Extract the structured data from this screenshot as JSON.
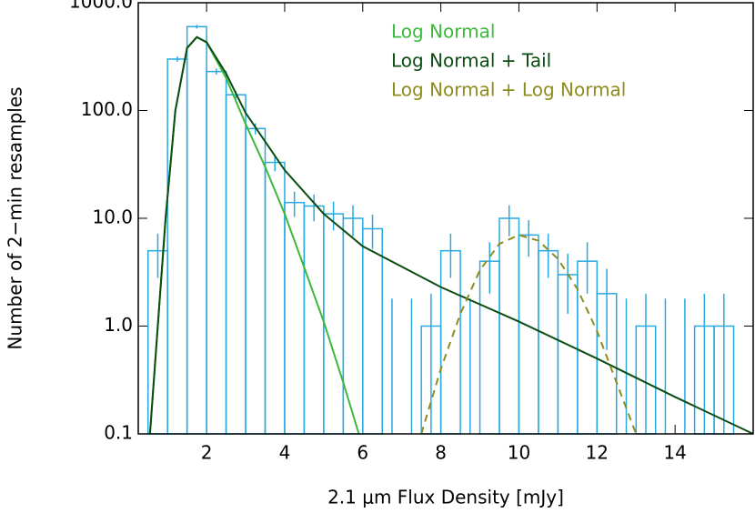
{
  "chart_data": {
    "type": "histogram",
    "x_label": "2.1 μm Flux Density [mJy]",
    "y_label": "Number of 2−min resamples",
    "bins": [
      0.5,
      1.0,
      1.5,
      2.0,
      2.5,
      3.0,
      3.5,
      4.0,
      4.5,
      5.0,
      5.5,
      6.0,
      6.5,
      7.0,
      7.5,
      8.0,
      8.5,
      9.0,
      9.5,
      10.0,
      10.5,
      11.0,
      11.5,
      12.0,
      12.5,
      13.0,
      13.5,
      14.0,
      14.5,
      15.0,
      15.5
    ],
    "values": [
      5,
      300,
      600,
      230,
      140,
      68,
      33,
      14,
      13,
      11,
      10,
      8,
      0,
      0,
      1,
      5,
      0,
      4,
      10,
      7,
      5,
      3,
      4,
      2,
      0,
      1,
      0,
      0,
      1,
      1
    ],
    "errors": [
      2.2,
      17,
      24,
      15,
      12,
      8,
      5.7,
      3.7,
      3.6,
      3.3,
      3.2,
      2.8,
      1.8,
      1.8,
      1,
      2.2,
      1.8,
      2,
      3.2,
      2.6,
      2.2,
      1.7,
      2,
      1.4,
      1.8,
      1,
      1.8,
      1.8,
      1,
      1
    ],
    "color": "#29a9e1",
    "log_y": true,
    "xlim": [
      0.25,
      16
    ],
    "ylim": [
      0.1,
      1000
    ],
    "xticks": [
      2,
      4,
      6,
      8,
      10,
      12,
      14
    ],
    "yticks": [
      0.1,
      {
        "value": 1,
        "label": "1.0"
      },
      {
        "value": 10,
        "label": "10.0"
      },
      {
        "value": 100,
        "label": "100.0"
      },
      {
        "value": 1000,
        "label": "1000.0"
      }
    ],
    "series": [
      {
        "name": "Log Normal",
        "color": "#3cb83c",
        "dashed": false,
        "x": [
          0.55,
          0.75,
          0.95,
          1.2,
          1.5,
          1.75,
          2.0,
          2.5,
          3.0,
          3.5,
          4.0,
          4.5,
          5.0,
          5.5,
          5.9
        ],
        "values": [
          0.1,
          1,
          10,
          100,
          380,
          480,
          430,
          200,
          75,
          30,
          11,
          3.5,
          1.1,
          0.3,
          0.1
        ]
      },
      {
        "name": "Log Normal + Tail",
        "color": "#0b4d12",
        "dashed": false,
        "x": [
          0.55,
          0.75,
          0.95,
          1.2,
          1.5,
          1.75,
          2.0,
          2.5,
          3.0,
          4.0,
          5.0,
          6.0,
          8.0,
          10.0,
          12.0,
          14.0,
          16.0
        ],
        "values": [
          0.1,
          1,
          10,
          100,
          380,
          480,
          430,
          220,
          95,
          28,
          11,
          5.5,
          2.3,
          1.1,
          0.5,
          0.22,
          0.1
        ]
      },
      {
        "name": "Log Normal + Log Normal",
        "color": "#8c8c1e",
        "dashed": true,
        "x": [
          7.5,
          8.0,
          8.5,
          9.0,
          9.5,
          10.0,
          10.5,
          11.0,
          11.5,
          12.0,
          12.5,
          13.0
        ],
        "values": [
          0.1,
          0.4,
          1.3,
          3.3,
          5.8,
          7,
          6.2,
          4.2,
          2.2,
          0.9,
          0.3,
          0.1
        ]
      }
    ]
  }
}
